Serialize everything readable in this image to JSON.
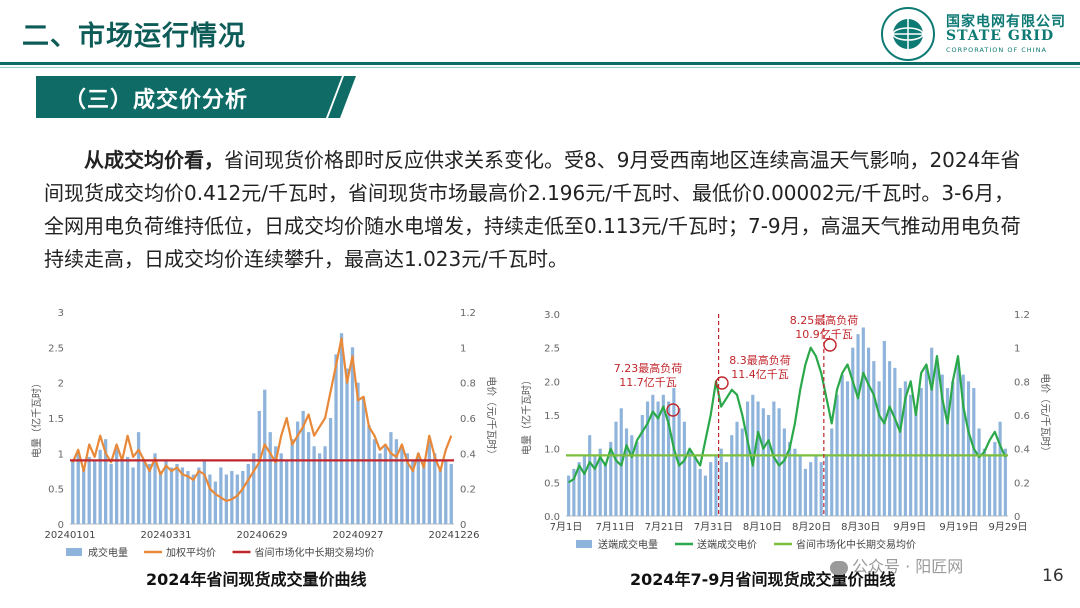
{
  "header": {
    "title": "二、市场运行情况"
  },
  "logo": {
    "cn": "国家电网有限公司",
    "en": "STATE GRID",
    "sub": "CORPORATION OF CHINA",
    "ring_text": "STATE GRID CORPORATION OF CHINA"
  },
  "section": {
    "title": "（三）成交价分析"
  },
  "paragraph": {
    "lead": "从成交均价看，",
    "body": "省间现货价格即时反应供求关系变化。受8、9月受西南地区连续高温天气影响，2024年省间现货成交均价0.412元/千瓦时，省间现货市场最高价2.196元/千瓦时、最低价0.00002元/千瓦时。3-6月，全网用电负荷维持低位，日成交均价随水电增发，持续走低至0.113元/千瓦时；7-9月，高温天气推动用电负荷持续走高，日成交均价连续攀升，最高达1.023元/千瓦时。"
  },
  "colors": {
    "bar": "#8fb4dc",
    "orange": "#e8893a",
    "red": "#c0262c",
    "green": "#2aa84a",
    "teal": "#0e6b66",
    "dashed": "#c0262c"
  },
  "chart_data": [
    {
      "type": "bar",
      "title": "2024年省间现货成交量价曲线",
      "ylabel": "电量（亿千瓦时）",
      "y2label": "电价（元/千瓦时）",
      "ylim": [
        0,
        3
      ],
      "yticks": [
        "0",
        "0.5",
        "1",
        "1.5",
        "2",
        "2.5",
        "3"
      ],
      "y2lim": [
        0,
        1.2
      ],
      "y2ticks": [
        "0",
        "0.2",
        "0.4",
        "0.6",
        "0.8",
        "1",
        "1.2"
      ],
      "xticks": [
        "20240101",
        "20240331",
        "20240629",
        "20240927",
        "20241226"
      ],
      "legend": [
        "成交电量",
        "加权平均价",
        "省间市场化中长期交易均价"
      ],
      "series": [
        {
          "name": "成交电量",
          "type": "bar",
          "axis": "left",
          "values": [
            0.9,
            1.0,
            0.8,
            0.95,
            0.9,
            1.05,
            1.2,
            0.85,
            1.1,
            0.9,
            0.95,
            0.8,
            1.3,
            0.9,
            0.85,
            1.0,
            0.75,
            0.9,
            0.8,
            0.85,
            0.8,
            0.75,
            0.7,
            0.8,
            0.9,
            0.7,
            0.6,
            0.8,
            0.7,
            0.75,
            0.7,
            0.75,
            0.85,
            1.0,
            1.6,
            1.9,
            1.3,
            1.1,
            1.0,
            0.9,
            1.2,
            1.45,
            1.6,
            1.3,
            1.1,
            1.0,
            1.1,
            1.5,
            2.4,
            2.7,
            2.2,
            2.5,
            2.0,
            1.8,
            1.4,
            1.2,
            1.0,
            1.1,
            1.3,
            1.2,
            1.1,
            1.0,
            0.9,
            1.0,
            0.9,
            1.2,
            1.0,
            0.8,
            0.9,
            0.85
          ]
        },
        {
          "name": "加权平均价",
          "type": "line",
          "axis": "right",
          "values": [
            0.35,
            0.42,
            0.3,
            0.45,
            0.38,
            0.5,
            0.4,
            0.35,
            0.45,
            0.36,
            0.5,
            0.38,
            0.42,
            0.36,
            0.3,
            0.37,
            0.28,
            0.33,
            0.3,
            0.32,
            0.28,
            0.27,
            0.25,
            0.3,
            0.28,
            0.2,
            0.17,
            0.15,
            0.13,
            0.14,
            0.16,
            0.2,
            0.25,
            0.3,
            0.35,
            0.45,
            0.4,
            0.35,
            0.5,
            0.6,
            0.45,
            0.5,
            0.55,
            0.62,
            0.5,
            0.55,
            0.6,
            0.75,
            0.9,
            1.05,
            0.8,
            0.95,
            0.7,
            0.72,
            0.55,
            0.5,
            0.42,
            0.45,
            0.4,
            0.38,
            0.45,
            0.35,
            0.3,
            0.4,
            0.32,
            0.5,
            0.38,
            0.3,
            0.42,
            0.5
          ]
        },
        {
          "name": "省间市场化中长期交易均价",
          "type": "line",
          "axis": "right",
          "values": [
            0.36,
            0.36
          ]
        }
      ]
    },
    {
      "type": "bar",
      "title": "2024年7-9月省间现货成交量价曲线",
      "ylabel": "电量（亿千瓦时）",
      "y2label": "电价（元/千瓦时）",
      "ylim": [
        0,
        3
      ],
      "yticks": [
        "0.0",
        "0.5",
        "1.0",
        "1.5",
        "2.0",
        "2.5",
        "3.0"
      ],
      "y2lim": [
        0,
        1.2
      ],
      "y2ticks": [
        "0",
        "0.2",
        "0.4",
        "0.6",
        "0.8",
        "1",
        "1.2"
      ],
      "xticks": [
        "7月1日",
        "7月11日",
        "7月21日",
        "7月31日",
        "8月10日",
        "8月20日",
        "8月30日",
        "9月9日",
        "9月19日",
        "9月29日"
      ],
      "legend": [
        "送端成交电量",
        "送端成交电价",
        "省间市场化中长期交易均价"
      ],
      "annotations": [
        "7.23最高负荷",
        "11.7亿千瓦",
        "8.3最高负荷",
        "11.4亿千瓦",
        "8.25最高负荷",
        "10.9亿千瓦"
      ],
      "series": [
        {
          "name": "送端成交电量",
          "type": "bar",
          "axis": "left",
          "values": [
            0.6,
            0.7,
            0.8,
            0.9,
            1.2,
            0.9,
            1.0,
            0.8,
            1.1,
            1.4,
            1.6,
            1.3,
            1.2,
            1.1,
            1.5,
            1.7,
            1.8,
            1.7,
            1.8,
            1.7,
            1.9,
            1.6,
            1.4,
            1.0,
            0.9,
            0.7,
            0.6,
            0.8,
            0.9,
            1.0,
            0.8,
            1.2,
            1.4,
            1.3,
            1.7,
            1.8,
            1.7,
            1.6,
            1.5,
            1.7,
            1.6,
            1.3,
            1.1,
            1.0,
            0.9,
            0.7,
            0.8,
            0.9,
            0.8,
            0.9,
            1.3,
            1.8,
            2.1,
            2.0,
            2.5,
            2.7,
            2.8,
            2.5,
            2.3,
            2.0,
            2.6,
            2.3,
            2.2,
            1.9,
            2.0,
            1.8,
            1.6,
            1.9,
            2.2,
            2.5,
            2.3,
            2.1,
            1.9,
            2.0,
            2.3,
            2.1,
            2.0,
            1.9,
            1.3,
            1.0,
            0.9,
            1.1,
            1.4,
            1.0
          ]
        },
        {
          "name": "送端成交电价",
          "type": "line",
          "axis": "right",
          "values": [
            0.2,
            0.22,
            0.3,
            0.25,
            0.32,
            0.28,
            0.35,
            0.3,
            0.4,
            0.33,
            0.3,
            0.42,
            0.35,
            0.45,
            0.5,
            0.55,
            0.62,
            0.58,
            0.65,
            0.55,
            0.4,
            0.3,
            0.33,
            0.4,
            0.35,
            0.3,
            0.45,
            0.6,
            0.8,
            0.65,
            0.7,
            0.75,
            0.72,
            0.6,
            0.45,
            0.3,
            0.5,
            0.4,
            0.45,
            0.35,
            0.3,
            0.33,
            0.4,
            0.55,
            0.75,
            0.9,
            1.0,
            0.95,
            0.85,
            0.7,
            0.55,
            0.75,
            0.85,
            0.9,
            0.8,
            0.7,
            0.85,
            0.78,
            0.72,
            0.6,
            0.55,
            0.65,
            0.58,
            0.5,
            0.7,
            0.8,
            0.6,
            0.85,
            0.9,
            0.75,
            0.95,
            0.7,
            0.55,
            0.8,
            0.95,
            0.65,
            0.5,
            0.4,
            0.35,
            0.38,
            0.45,
            0.5,
            0.42,
            0.35
          ]
        },
        {
          "name": "省间市场化中长期交易均价",
          "type": "line",
          "axis": "right",
          "values": [
            0.36,
            0.36
          ]
        }
      ]
    }
  ],
  "captions": {
    "left": "2024年省间现货成交量价曲线",
    "right": "2024年7-9月省间现货成交量价曲线"
  },
  "page": {
    "number": "16"
  },
  "watermark": "公众号 · 阳匠网"
}
